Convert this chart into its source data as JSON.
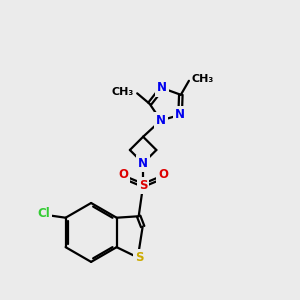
{
  "bg_color": "#ebebeb",
  "bond_color": "#000000",
  "n_color": "#0000ee",
  "s_color": "#ccaa00",
  "o_color": "#dd0000",
  "cl_color": "#33cc33",
  "sul_s_color": "#dd0000",
  "line_width": 1.6,
  "font_size": 8.5,
  "figsize": [
    3.0,
    3.0
  ],
  "dpi": 100,
  "xlim": [
    0,
    10
  ],
  "ylim": [
    0,
    10
  ]
}
